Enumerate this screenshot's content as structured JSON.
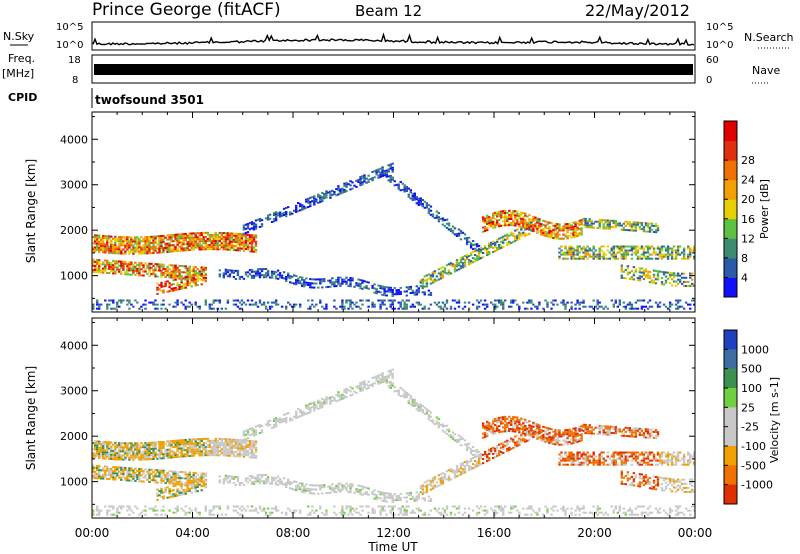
{
  "header": {
    "title": "Prince George (fitACF)",
    "beam": "Beam 12",
    "date": "22/May/2012"
  },
  "status_panels": {
    "nsky_label": "N.Sky",
    "nsearch_label": "N.Search",
    "noise_ticks": [
      "10^5",
      "10^0"
    ],
    "freq_label": "Freq.",
    "freq_unit": "[MHz]",
    "freq_ticks": [
      "18",
      "8"
    ],
    "nave_label": "Nave",
    "nave_ticks": [
      "60",
      "0"
    ],
    "cpid_label": "CPID",
    "cpid_value": "twofsound 3501"
  },
  "chart_data": [
    {
      "type": "heatmap",
      "name": "power",
      "ylabel": "Slant Range [km]",
      "yticks": [
        1000,
        2000,
        3000,
        4000
      ],
      "ylim": [
        200,
        4600
      ],
      "xlim_hours": [
        0,
        24
      ],
      "colorbar": {
        "label": "Power [dB]",
        "ticks": [
          "4",
          "8",
          "12",
          "16",
          "20",
          "24",
          "28"
        ],
        "colors": [
          "#1010ff",
          "#2a5aa8",
          "#3c8c6e",
          "#5cc040",
          "#e8d000",
          "#f0a000",
          "#f07000",
          "#e03010",
          "#e00000"
        ]
      }
    },
    {
      "type": "heatmap",
      "name": "velocity",
      "ylabel": "Slant Range [km]",
      "yticks": [
        1000,
        2000,
        3000,
        4000
      ],
      "ylim": [
        200,
        4600
      ],
      "xlim_hours": [
        0,
        24
      ],
      "colorbar": {
        "label": "Velocity [m s-1]",
        "ticks": [
          "1000",
          "500",
          "100",
          "25",
          "-25",
          "-100",
          "-500",
          "-1000"
        ],
        "colors": [
          "#2040c0",
          "#3c6ca0",
          "#3c9050",
          "#70d040",
          "#c8c8c8",
          "#c8c8c8",
          "#f0a000",
          "#f07000",
          "#e03000"
        ]
      }
    }
  ],
  "xaxis": {
    "ticks": [
      "00:00",
      "04:00",
      "08:00",
      "12:00",
      "16:00",
      "20:00",
      "00:00"
    ],
    "label": "Time UT"
  }
}
